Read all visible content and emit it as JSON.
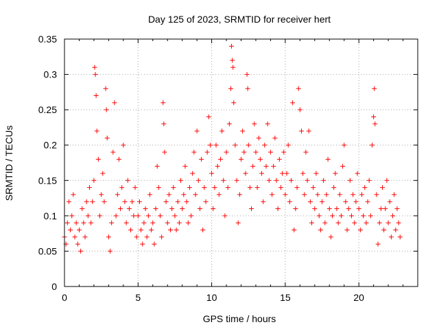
{
  "chart_data": {
    "type": "scatter",
    "title": "Day 125 of 2023, SRMTID for receiver hert",
    "xlabel": "GPS time / hours",
    "ylabel": "SRMTID / TECUs",
    "xlim": [
      0,
      24
    ],
    "ylim": [
      0,
      0.35
    ],
    "xticks": [
      0,
      5,
      10,
      15,
      20
    ],
    "xtick_labels": [
      "0",
      "5",
      "10",
      "15",
      "20"
    ],
    "yticks": [
      0,
      0.05,
      0.1,
      0.15,
      0.2,
      0.25,
      0.3,
      0.35
    ],
    "ytick_labels": [
      "0",
      "0.05",
      "0.1",
      "0.15",
      "0.2",
      "0.25",
      "0.3",
      "0.35"
    ],
    "grid": true,
    "marker": "plus",
    "color": "#ff0000",
    "series": [
      {
        "points": [
          [
            0.0,
            0.07
          ],
          [
            0.1,
            0.06
          ],
          [
            0.2,
            0.09
          ],
          [
            0.3,
            0.12
          ],
          [
            0.4,
            0.08
          ],
          [
            0.5,
            0.1
          ],
          [
            0.6,
            0.13
          ],
          [
            0.7,
            0.07
          ],
          [
            0.8,
            0.09
          ],
          [
            0.9,
            0.06
          ],
          [
            1.0,
            0.08
          ],
          [
            1.1,
            0.05
          ],
          [
            1.2,
            0.11
          ],
          [
            1.3,
            0.09
          ],
          [
            1.4,
            0.07
          ],
          [
            1.5,
            0.12
          ],
          [
            1.6,
            0.1
          ],
          [
            1.7,
            0.14
          ],
          [
            1.8,
            0.09
          ],
          [
            1.9,
            0.12
          ],
          [
            2.0,
            0.15
          ],
          [
            2.05,
            0.31
          ],
          [
            2.1,
            0.3
          ],
          [
            2.15,
            0.27
          ],
          [
            2.2,
            0.22
          ],
          [
            2.3,
            0.18
          ],
          [
            2.4,
            0.1
          ],
          [
            2.5,
            0.13
          ],
          [
            2.6,
            0.16
          ],
          [
            2.7,
            0.12
          ],
          [
            2.8,
            0.28
          ],
          [
            2.85,
            0.25
          ],
          [
            2.9,
            0.21
          ],
          [
            3.0,
            0.07
          ],
          [
            3.1,
            0.05
          ],
          [
            3.2,
            0.09
          ],
          [
            3.3,
            0.19
          ],
          [
            3.4,
            0.26
          ],
          [
            3.5,
            0.1
          ],
          [
            3.6,
            0.13
          ],
          [
            3.7,
            0.18
          ],
          [
            3.8,
            0.11
          ],
          [
            3.9,
            0.14
          ],
          [
            4.0,
            0.2
          ],
          [
            4.1,
            0.12
          ],
          [
            4.2,
            0.09
          ],
          [
            4.3,
            0.15
          ],
          [
            4.4,
            0.11
          ],
          [
            4.5,
            0.08
          ],
          [
            4.6,
            0.12
          ],
          [
            4.7,
            0.1
          ],
          [
            4.8,
            0.14
          ],
          [
            4.9,
            0.07
          ],
          [
            5.0,
            0.1
          ],
          [
            5.1,
            0.12
          ],
          [
            5.2,
            0.08
          ],
          [
            5.3,
            0.06
          ],
          [
            5.4,
            0.09
          ],
          [
            5.5,
            0.11
          ],
          [
            5.6,
            0.07
          ],
          [
            5.7,
            0.1
          ],
          [
            5.8,
            0.13
          ],
          [
            5.9,
            0.08
          ],
          [
            6.0,
            0.09
          ],
          [
            6.1,
            0.06
          ],
          [
            6.2,
            0.11
          ],
          [
            6.3,
            0.17
          ],
          [
            6.4,
            0.14
          ],
          [
            6.5,
            0.1
          ],
          [
            6.6,
            0.07
          ],
          [
            6.7,
            0.26
          ],
          [
            6.75,
            0.23
          ],
          [
            6.8,
            0.19
          ],
          [
            6.9,
            0.12
          ],
          [
            7.0,
            0.09
          ],
          [
            7.1,
            0.13
          ],
          [
            7.2,
            0.08
          ],
          [
            7.3,
            0.11
          ],
          [
            7.4,
            0.14
          ],
          [
            7.5,
            0.1
          ],
          [
            7.6,
            0.08
          ],
          [
            7.7,
            0.12
          ],
          [
            7.8,
            0.09
          ],
          [
            7.9,
            0.15
          ],
          [
            8.0,
            0.11
          ],
          [
            8.1,
            0.13
          ],
          [
            8.2,
            0.17
          ],
          [
            8.3,
            0.12
          ],
          [
            8.4,
            0.09
          ],
          [
            8.5,
            0.14
          ],
          [
            8.6,
            0.1
          ],
          [
            8.7,
            0.16
          ],
          [
            8.8,
            0.19
          ],
          [
            8.9,
            0.13
          ],
          [
            9.0,
            0.22
          ],
          [
            9.1,
            0.15
          ],
          [
            9.2,
            0.11
          ],
          [
            9.3,
            0.18
          ],
          [
            9.4,
            0.08
          ],
          [
            9.5,
            0.14
          ],
          [
            9.6,
            0.12
          ],
          [
            9.7,
            0.19
          ],
          [
            9.8,
            0.24
          ],
          [
            9.9,
            0.2
          ],
          [
            10.0,
            0.16
          ],
          [
            10.1,
            0.11
          ],
          [
            10.2,
            0.14
          ],
          [
            10.3,
            0.2
          ],
          [
            10.4,
            0.17
          ],
          [
            10.5,
            0.13
          ],
          [
            10.6,
            0.18
          ],
          [
            10.7,
            0.22
          ],
          [
            10.8,
            0.15
          ],
          [
            10.9,
            0.1
          ],
          [
            11.0,
            0.19
          ],
          [
            11.1,
            0.14
          ],
          [
            11.2,
            0.23
          ],
          [
            11.3,
            0.28
          ],
          [
            11.35,
            0.34
          ],
          [
            11.4,
            0.32
          ],
          [
            11.45,
            0.31
          ],
          [
            11.5,
            0.26
          ],
          [
            11.6,
            0.2
          ],
          [
            11.7,
            0.15
          ],
          [
            11.8,
            0.09
          ],
          [
            11.9,
            0.13
          ],
          [
            12.0,
            0.18
          ],
          [
            12.1,
            0.22
          ],
          [
            12.2,
            0.19
          ],
          [
            12.3,
            0.16
          ],
          [
            12.4,
            0.3
          ],
          [
            12.45,
            0.28
          ],
          [
            12.5,
            0.2
          ],
          [
            12.6,
            0.14
          ],
          [
            12.7,
            0.11
          ],
          [
            12.8,
            0.17
          ],
          [
            12.9,
            0.23
          ],
          [
            13.0,
            0.19
          ],
          [
            13.1,
            0.14
          ],
          [
            13.2,
            0.21
          ],
          [
            13.3,
            0.18
          ],
          [
            13.4,
            0.16
          ],
          [
            13.5,
            0.12
          ],
          [
            13.6,
            0.2
          ],
          [
            13.7,
            0.17
          ],
          [
            13.8,
            0.23
          ],
          [
            13.9,
            0.15
          ],
          [
            14.0,
            0.19
          ],
          [
            14.1,
            0.13
          ],
          [
            14.2,
            0.17
          ],
          [
            14.3,
            0.21
          ],
          [
            14.4,
            0.15
          ],
          [
            14.5,
            0.11
          ],
          [
            14.6,
            0.18
          ],
          [
            14.7,
            0.14
          ],
          [
            14.8,
            0.16
          ],
          [
            14.9,
            0.19
          ],
          [
            15.0,
            0.13
          ],
          [
            15.1,
            0.16
          ],
          [
            15.2,
            0.2
          ],
          [
            15.3,
            0.12
          ],
          [
            15.4,
            0.15
          ],
          [
            15.5,
            0.26
          ],
          [
            15.6,
            0.08
          ],
          [
            15.7,
            0.11
          ],
          [
            15.8,
            0.14
          ],
          [
            15.9,
            0.28
          ],
          [
            16.0,
            0.25
          ],
          [
            16.1,
            0.22
          ],
          [
            16.2,
            0.16
          ],
          [
            16.3,
            0.13
          ],
          [
            16.4,
            0.19
          ],
          [
            16.5,
            0.15
          ],
          [
            16.6,
            0.22
          ],
          [
            16.7,
            0.12
          ],
          [
            16.8,
            0.09
          ],
          [
            16.9,
            0.14
          ],
          [
            17.0,
            0.11
          ],
          [
            17.1,
            0.16
          ],
          [
            17.2,
            0.13
          ],
          [
            17.3,
            0.1
          ],
          [
            17.4,
            0.08
          ],
          [
            17.5,
            0.12
          ],
          [
            17.6,
            0.15
          ],
          [
            17.7,
            0.09
          ],
          [
            17.8,
            0.13
          ],
          [
            17.9,
            0.18
          ],
          [
            18.0,
            0.11
          ],
          [
            18.1,
            0.07
          ],
          [
            18.2,
            0.1
          ],
          [
            18.3,
            0.14
          ],
          [
            18.4,
            0.16
          ],
          [
            18.5,
            0.11
          ],
          [
            18.6,
            0.09
          ],
          [
            18.7,
            0.13
          ],
          [
            18.8,
            0.1
          ],
          [
            18.9,
            0.17
          ],
          [
            19.0,
            0.2
          ],
          [
            19.1,
            0.12
          ],
          [
            19.2,
            0.08
          ],
          [
            19.3,
            0.11
          ],
          [
            19.4,
            0.15
          ],
          [
            19.5,
            0.1
          ],
          [
            19.6,
            0.13
          ],
          [
            19.7,
            0.09
          ],
          [
            19.8,
            0.12
          ],
          [
            19.9,
            0.16
          ],
          [
            20.0,
            0.11
          ],
          [
            20.1,
            0.08
          ],
          [
            20.2,
            0.13
          ],
          [
            20.3,
            0.1
          ],
          [
            20.4,
            0.14
          ],
          [
            20.5,
            0.09
          ],
          [
            20.6,
            0.12
          ],
          [
            20.7,
            0.15
          ],
          [
            20.8,
            0.1
          ],
          [
            20.9,
            0.2
          ],
          [
            21.0,
            0.24
          ],
          [
            21.05,
            0.28
          ],
          [
            21.1,
            0.23
          ],
          [
            21.2,
            0.13
          ],
          [
            21.3,
            0.06
          ],
          [
            21.4,
            0.09
          ],
          [
            21.5,
            0.11
          ],
          [
            21.6,
            0.14
          ],
          [
            21.7,
            0.08
          ],
          [
            21.8,
            0.11
          ],
          [
            21.9,
            0.15
          ],
          [
            22.0,
            0.09
          ],
          [
            22.1,
            0.12
          ],
          [
            22.2,
            0.07
          ],
          [
            22.3,
            0.1
          ],
          [
            22.4,
            0.13
          ],
          [
            22.5,
            0.08
          ],
          [
            22.6,
            0.11
          ],
          [
            22.7,
            0.09
          ],
          [
            22.8,
            0.07
          ]
        ]
      }
    ]
  }
}
